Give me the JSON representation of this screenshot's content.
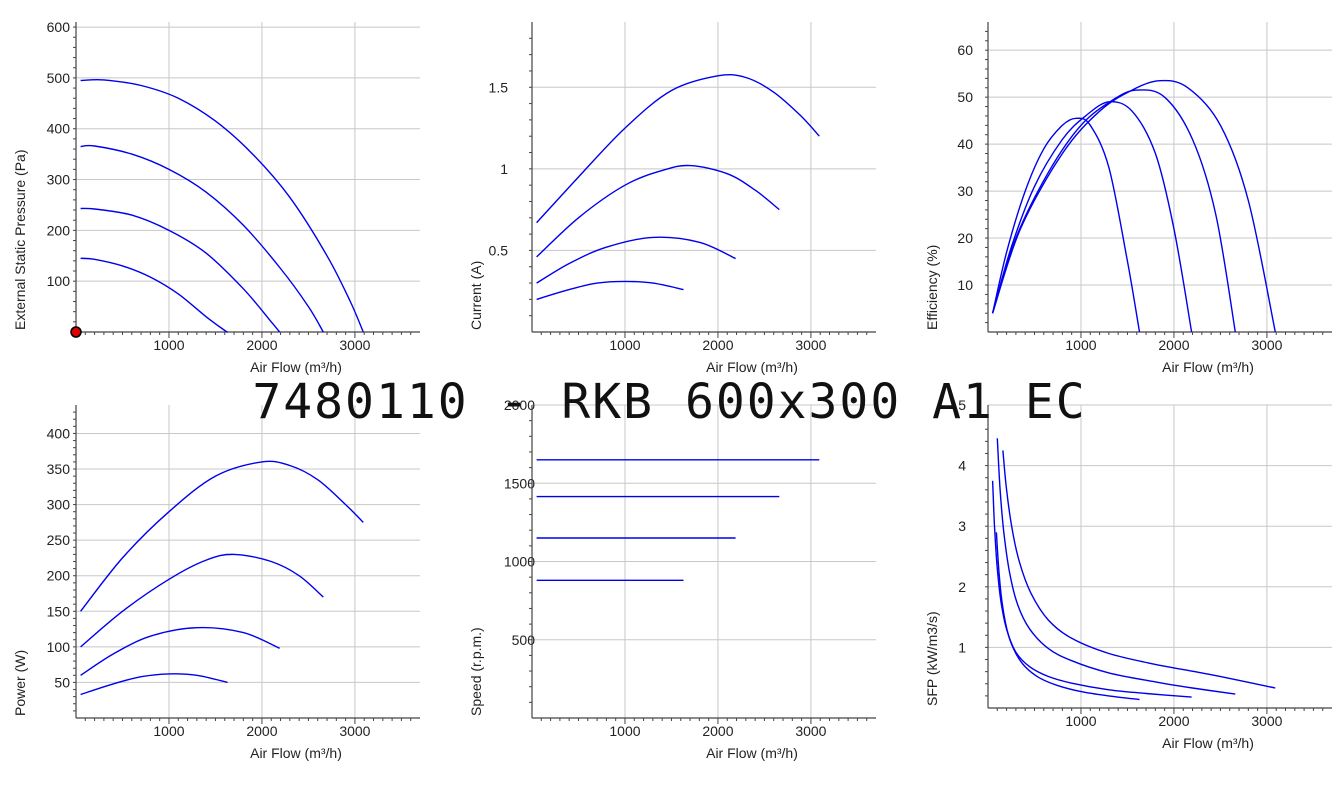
{
  "title": "7480110 - RKB 600x300 A1 EC",
  "colors": {
    "series": "#0000ee",
    "grid": "#c8c8c8",
    "axis": "#444444",
    "marker": "#dd0000"
  },
  "chart_data": [
    {
      "type": "line",
      "xlabel": "Air Flow (m³/h)",
      "ylabel": "External Static Pressure (Pa)",
      "xlim": [
        0,
        3700
      ],
      "ylim": [
        0,
        610
      ],
      "xticks": [
        1000,
        2000,
        3000
      ],
      "xtick_labels": [
        "1000",
        "2000",
        "3000"
      ],
      "yticks": [
        100,
        200,
        300,
        400,
        500,
        600
      ],
      "ytick_labels": [
        "100",
        "200",
        "300",
        "400",
        "500",
        "600"
      ],
      "grid": true,
      "marker_point": {
        "x": 0,
        "y": 0
      },
      "series": [
        {
          "x": [
            50,
            200,
            500,
            800,
            1100,
            1400,
            1600,
            1630
          ],
          "y": [
            145,
            143,
            130,
            108,
            75,
            30,
            3,
            0
          ]
        },
        {
          "x": [
            50,
            200,
            600,
            1000,
            1400,
            1800,
            2100,
            2190
          ],
          "y": [
            243,
            242,
            230,
            200,
            155,
            85,
            20,
            0
          ]
        },
        {
          "x": [
            50,
            200,
            600,
            1000,
            1400,
            1800,
            2200,
            2500,
            2660
          ],
          "y": [
            365,
            366,
            350,
            320,
            275,
            210,
            125,
            50,
            0
          ]
        },
        {
          "x": [
            50,
            300,
            700,
            1100,
            1500,
            1900,
            2300,
            2700,
            2950,
            3090
          ],
          "y": [
            495,
            496,
            485,
            460,
            415,
            350,
            265,
            150,
            60,
            0
          ]
        }
      ]
    },
    {
      "type": "line",
      "xlabel": "Air Flow (m³/h)",
      "ylabel": "Current (A)",
      "xlim": [
        0,
        3700
      ],
      "ylim": [
        0,
        1.9
      ],
      "xticks": [
        1000,
        2000,
        3000
      ],
      "xtick_labels": [
        "1000",
        "2000",
        "3000"
      ],
      "yticks": [
        0.5,
        1,
        1.5
      ],
      "ytick_labels": [
        "0.5",
        "1",
        "1.5"
      ],
      "grid": true,
      "series": [
        {
          "x": [
            50,
            400,
            700,
            1000,
            1300,
            1630
          ],
          "y": [
            0.2,
            0.26,
            0.3,
            0.31,
            0.3,
            0.26
          ]
        },
        {
          "x": [
            50,
            400,
            800,
            1300,
            1800,
            2190
          ],
          "y": [
            0.3,
            0.42,
            0.52,
            0.58,
            0.55,
            0.45
          ]
        },
        {
          "x": [
            50,
            500,
            1000,
            1400,
            1700,
            2100,
            2400,
            2660
          ],
          "y": [
            0.46,
            0.7,
            0.9,
            0.99,
            1.02,
            0.97,
            0.87,
            0.75
          ]
        },
        {
          "x": [
            50,
            500,
            1000,
            1500,
            2000,
            2300,
            2600,
            2900,
            3090
          ],
          "y": [
            0.67,
            0.95,
            1.25,
            1.48,
            1.57,
            1.56,
            1.47,
            1.32,
            1.2
          ]
        }
      ]
    },
    {
      "type": "line",
      "xlabel": "Air Flow (m³/h)",
      "ylabel": "Efficiency (%)",
      "xlim": [
        0,
        3700
      ],
      "ylim": [
        0,
        66
      ],
      "xticks": [
        1000,
        2000,
        3000
      ],
      "xtick_labels": [
        "1000",
        "2000",
        "3000"
      ],
      "yticks": [
        10,
        20,
        30,
        40,
        50,
        60
      ],
      "ytick_labels": [
        "10",
        "20",
        "30",
        "40",
        "50",
        "60"
      ],
      "grid": true,
      "series": [
        {
          "x": [
            50,
            200,
            400,
            600,
            800,
            950,
            1100,
            1300,
            1500,
            1630
          ],
          "y": [
            4,
            17,
            30,
            39,
            44,
            45.5,
            44,
            35,
            15,
            0
          ]
        },
        {
          "x": [
            50,
            250,
            500,
            800,
            1050,
            1300,
            1550,
            1800,
            2000,
            2190
          ],
          "y": [
            4,
            18,
            31,
            41,
            46,
            49,
            47,
            38,
            22,
            0
          ]
        },
        {
          "x": [
            50,
            300,
            650,
            1000,
            1350,
            1600,
            1900,
            2200,
            2450,
            2660
          ],
          "y": [
            4,
            20,
            34,
            44,
            49.5,
            51.5,
            50,
            41,
            25,
            0
          ]
        },
        {
          "x": [
            50,
            350,
            800,
            1200,
            1550,
            1850,
            2150,
            2500,
            2800,
            3090
          ],
          "y": [
            4,
            22,
            38,
            47,
            51.5,
            53.5,
            52,
            44,
            28,
            0
          ]
        }
      ]
    },
    {
      "type": "line",
      "xlabel": "Air Flow (m³/h)",
      "ylabel": "Power (W)",
      "xlim": [
        0,
        3700
      ],
      "ylim": [
        0,
        440
      ],
      "xticks": [
        1000,
        2000,
        3000
      ],
      "xtick_labels": [
        "1000",
        "2000",
        "3000"
      ],
      "yticks": [
        50,
        100,
        150,
        200,
        250,
        300,
        350,
        400
      ],
      "ytick_labels": [
        "50",
        "100",
        "150",
        "200",
        "250",
        "300",
        "350",
        "400"
      ],
      "grid": true,
      "series": [
        {
          "x": [
            50,
            400,
            700,
            1000,
            1300,
            1630
          ],
          "y": [
            33,
            48,
            58,
            62,
            60,
            50
          ]
        },
        {
          "x": [
            50,
            400,
            800,
            1300,
            1800,
            2190
          ],
          "y": [
            60,
            90,
            115,
            127,
            120,
            98
          ]
        },
        {
          "x": [
            50,
            500,
            1000,
            1400,
            1700,
            2100,
            2400,
            2660
          ],
          "y": [
            100,
            150,
            195,
            222,
            230,
            220,
            200,
            170
          ]
        },
        {
          "x": [
            50,
            500,
            1000,
            1500,
            2000,
            2300,
            2600,
            2900,
            3090
          ],
          "y": [
            150,
            225,
            290,
            340,
            360,
            355,
            335,
            300,
            275
          ]
        }
      ]
    },
    {
      "type": "line",
      "xlabel": "Air Flow (m³/h)",
      "ylabel": "Speed (r.p.m.)",
      "xlim": [
        0,
        3700
      ],
      "ylim": [
        0,
        2000
      ],
      "xticks": [
        1000,
        2000,
        3000
      ],
      "xtick_labels": [
        "1000",
        "2000",
        "3000"
      ],
      "yticks": [
        500,
        1000,
        1500,
        2000
      ],
      "ytick_labels": [
        "500",
        "1000",
        "1500",
        "2000"
      ],
      "grid": true,
      "series": [
        {
          "x": [
            50,
            1630
          ],
          "y": [
            880,
            880
          ]
        },
        {
          "x": [
            50,
            2190
          ],
          "y": [
            1150,
            1150
          ]
        },
        {
          "x": [
            50,
            2660
          ],
          "y": [
            1415,
            1415
          ]
        },
        {
          "x": [
            50,
            3090
          ],
          "y": [
            1650,
            1650
          ]
        }
      ]
    },
    {
      "type": "line",
      "xlabel": "Air Flow (m³/h)",
      "ylabel": "SFP (kW/m3/s)",
      "xlim": [
        0,
        3700
      ],
      "ylim": [
        0,
        5
      ],
      "xticks": [
        1000,
        2000,
        3000
      ],
      "xtick_labels": [
        "1000",
        "2000",
        "3000"
      ],
      "yticks": [
        1,
        2,
        3,
        4,
        5
      ],
      "ytick_labels": [
        "1",
        "2",
        "3",
        "4",
        "5"
      ],
      "grid": true,
      "series": [
        {
          "x": [
            90,
            120,
            160,
            220,
            300,
            400,
            550,
            750,
            1000,
            1300,
            1630
          ],
          "y": [
            2.9,
            2.2,
            1.65,
            1.2,
            0.9,
            0.68,
            0.5,
            0.37,
            0.27,
            0.2,
            0.14
          ]
        },
        {
          "x": [
            50,
            70,
            100,
            140,
            200,
            300,
            450,
            650,
            900,
            1300,
            1700,
            2190
          ],
          "y": [
            3.75,
            3.0,
            2.3,
            1.75,
            1.3,
            0.92,
            0.68,
            0.52,
            0.41,
            0.3,
            0.24,
            0.18
          ]
        },
        {
          "x": [
            100,
            130,
            170,
            230,
            320,
            450,
            650,
            900,
            1300,
            1800,
            2200,
            2660
          ],
          "y": [
            4.45,
            3.6,
            2.9,
            2.25,
            1.7,
            1.3,
            0.98,
            0.78,
            0.58,
            0.43,
            0.33,
            0.23
          ]
        },
        {
          "x": [
            160,
            200,
            260,
            340,
            460,
            650,
            900,
            1300,
            1800,
            2400,
            3090
          ],
          "y": [
            4.25,
            3.6,
            2.95,
            2.4,
            1.9,
            1.45,
            1.15,
            0.9,
            0.72,
            0.55,
            0.33
          ]
        }
      ]
    }
  ]
}
